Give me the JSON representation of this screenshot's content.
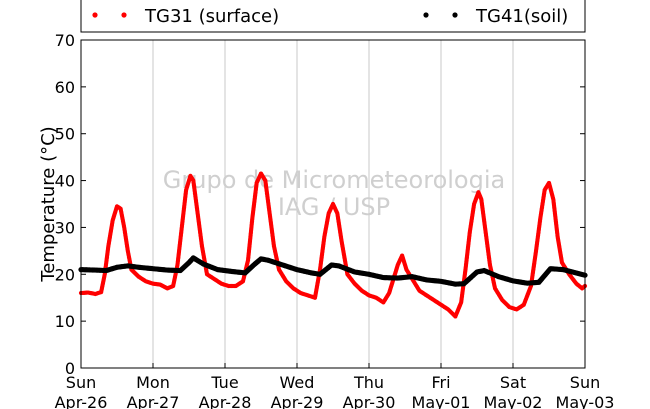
{
  "chart_data": {
    "type": "scatter",
    "title": "",
    "xlabel": "",
    "ylabel": "Temperature (°C)",
    "ylim": [
      0,
      70
    ],
    "yticks": [
      0,
      10,
      20,
      30,
      40,
      50,
      60,
      70
    ],
    "xlim": [
      0,
      7
    ],
    "xticks": [
      {
        "day": "Sun",
        "date": "Apr-26"
      },
      {
        "day": "Mon",
        "date": "Apr-27"
      },
      {
        "day": "Tue",
        "date": "Apr-28"
      },
      {
        "day": "Wed",
        "date": "Apr-29"
      },
      {
        "day": "Thu",
        "date": "Apr-30"
      },
      {
        "day": "Fri",
        "date": "May-01"
      },
      {
        "day": "Sat",
        "date": "May-02"
      },
      {
        "day": "Sun",
        "date": "May-03"
      }
    ],
    "grid": "vertical",
    "legend_position": "top",
    "watermark": [
      "Grupo de Micrometeorologia",
      "IAG / USP"
    ],
    "series": [
      {
        "name": "TG31 (surface)",
        "color": "#ff0000",
        "points": [
          [
            0.0,
            16.0
          ],
          [
            0.1,
            16.1
          ],
          [
            0.2,
            15.8
          ],
          [
            0.28,
            16.2
          ],
          [
            0.33,
            20.0
          ],
          [
            0.38,
            26.0
          ],
          [
            0.44,
            31.5
          ],
          [
            0.5,
            34.5
          ],
          [
            0.55,
            34.0
          ],
          [
            0.6,
            30.0
          ],
          [
            0.65,
            25.0
          ],
          [
            0.7,
            21.0
          ],
          [
            0.8,
            19.5
          ],
          [
            0.9,
            18.5
          ],
          [
            1.0,
            18.0
          ],
          [
            1.1,
            17.8
          ],
          [
            1.2,
            17.0
          ],
          [
            1.28,
            17.5
          ],
          [
            1.34,
            22.0
          ],
          [
            1.4,
            30.0
          ],
          [
            1.46,
            38.0
          ],
          [
            1.52,
            41.0
          ],
          [
            1.56,
            40.0
          ],
          [
            1.62,
            33.0
          ],
          [
            1.68,
            26.0
          ],
          [
            1.75,
            20.0
          ],
          [
            1.85,
            19.0
          ],
          [
            1.95,
            18.0
          ],
          [
            2.05,
            17.5
          ],
          [
            2.15,
            17.5
          ],
          [
            2.25,
            18.5
          ],
          [
            2.32,
            23.0
          ],
          [
            2.38,
            32.0
          ],
          [
            2.44,
            39.5
          ],
          [
            2.5,
            41.5
          ],
          [
            2.56,
            40.0
          ],
          [
            2.62,
            33.0
          ],
          [
            2.68,
            26.0
          ],
          [
            2.75,
            21.0
          ],
          [
            2.85,
            18.5
          ],
          [
            2.95,
            17.0
          ],
          [
            3.05,
            16.0
          ],
          [
            3.15,
            15.5
          ],
          [
            3.25,
            15.0
          ],
          [
            3.32,
            21.0
          ],
          [
            3.38,
            28.0
          ],
          [
            3.44,
            33.0
          ],
          [
            3.5,
            35.0
          ],
          [
            3.56,
            33.0
          ],
          [
            3.62,
            27.0
          ],
          [
            3.7,
            20.0
          ],
          [
            3.8,
            18.0
          ],
          [
            3.9,
            16.5
          ],
          [
            4.0,
            15.5
          ],
          [
            4.1,
            15.0
          ],
          [
            4.2,
            14.0
          ],
          [
            4.28,
            16.0
          ],
          [
            4.34,
            19.0
          ],
          [
            4.4,
            22.0
          ],
          [
            4.46,
            24.0
          ],
          [
            4.52,
            21.0
          ],
          [
            4.6,
            19.0
          ],
          [
            4.7,
            16.5
          ],
          [
            4.8,
            15.5
          ],
          [
            4.9,
            14.5
          ],
          [
            5.0,
            13.5
          ],
          [
            5.1,
            12.5
          ],
          [
            5.2,
            11.0
          ],
          [
            5.28,
            14.0
          ],
          [
            5.34,
            21.0
          ],
          [
            5.4,
            29.0
          ],
          [
            5.46,
            35.0
          ],
          [
            5.52,
            37.5
          ],
          [
            5.56,
            36.0
          ],
          [
            5.62,
            29.0
          ],
          [
            5.68,
            22.0
          ],
          [
            5.75,
            17.0
          ],
          [
            5.85,
            14.5
          ],
          [
            5.95,
            13.0
          ],
          [
            6.05,
            12.5
          ],
          [
            6.15,
            13.5
          ],
          [
            6.25,
            17.5
          ],
          [
            6.32,
            25.0
          ],
          [
            6.38,
            32.0
          ],
          [
            6.44,
            38.0
          ],
          [
            6.5,
            39.5
          ],
          [
            6.56,
            36.0
          ],
          [
            6.62,
            28.0
          ],
          [
            6.68,
            22.5
          ],
          [
            6.78,
            20.0
          ],
          [
            6.88,
            18.0
          ],
          [
            6.96,
            17.0
          ],
          [
            7.0,
            17.5
          ]
        ]
      },
      {
        "name": "TG41(soil)",
        "color": "#000000",
        "points": [
          [
            0.0,
            21.0
          ],
          [
            0.2,
            20.9
          ],
          [
            0.35,
            20.8
          ],
          [
            0.5,
            21.5
          ],
          [
            0.65,
            21.8
          ],
          [
            0.8,
            21.5
          ],
          [
            1.0,
            21.2
          ],
          [
            1.2,
            20.9
          ],
          [
            1.38,
            20.8
          ],
          [
            1.5,
            22.5
          ],
          [
            1.56,
            23.5
          ],
          [
            1.7,
            22.2
          ],
          [
            1.9,
            21.0
          ],
          [
            2.1,
            20.6
          ],
          [
            2.28,
            20.3
          ],
          [
            2.4,
            22.0
          ],
          [
            2.5,
            23.3
          ],
          [
            2.6,
            23.0
          ],
          [
            2.8,
            22.0
          ],
          [
            3.0,
            21.0
          ],
          [
            3.2,
            20.3
          ],
          [
            3.32,
            20.0
          ],
          [
            3.48,
            22.0
          ],
          [
            3.58,
            21.8
          ],
          [
            3.8,
            20.5
          ],
          [
            4.0,
            20.0
          ],
          [
            4.2,
            19.3
          ],
          [
            4.4,
            19.2
          ],
          [
            4.6,
            19.5
          ],
          [
            4.8,
            18.8
          ],
          [
            5.0,
            18.5
          ],
          [
            5.2,
            17.9
          ],
          [
            5.32,
            18.0
          ],
          [
            5.5,
            20.5
          ],
          [
            5.6,
            20.8
          ],
          [
            5.8,
            19.5
          ],
          [
            6.0,
            18.6
          ],
          [
            6.2,
            18.1
          ],
          [
            6.36,
            18.3
          ],
          [
            6.52,
            21.2
          ],
          [
            6.7,
            21.0
          ],
          [
            6.9,
            20.2
          ],
          [
            7.0,
            19.8
          ]
        ]
      }
    ]
  }
}
